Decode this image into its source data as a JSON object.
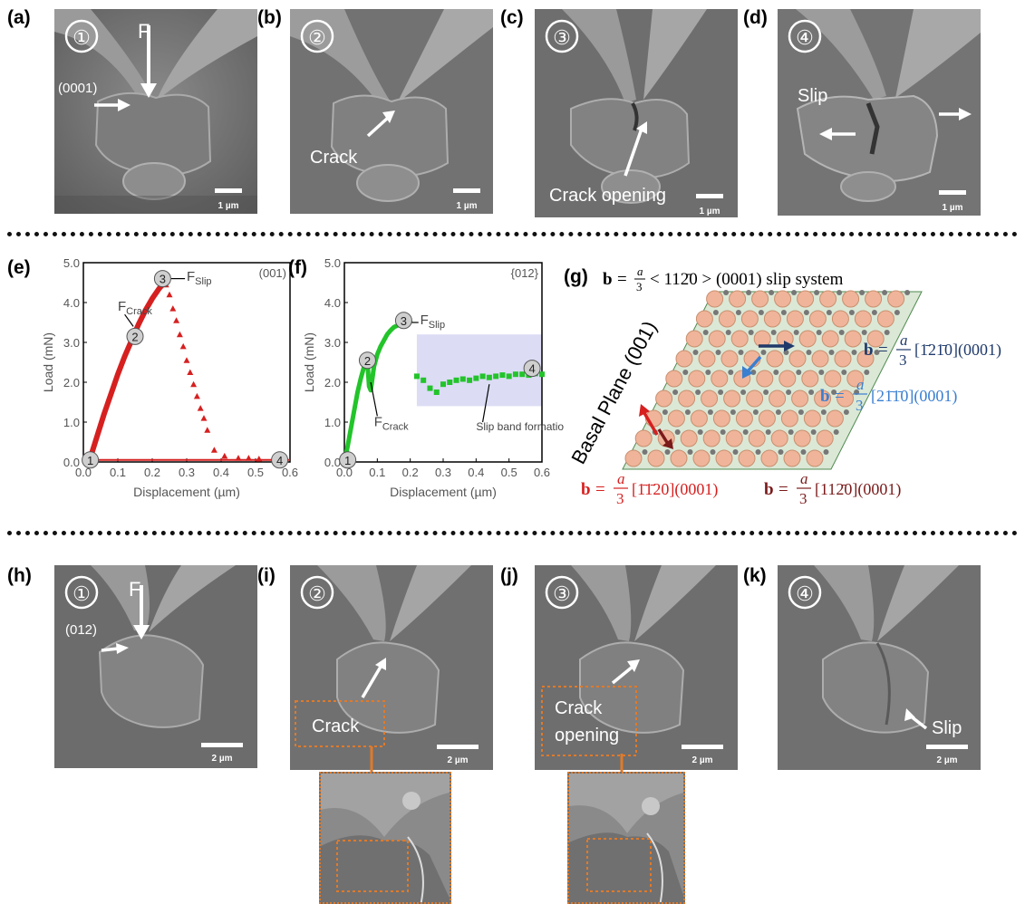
{
  "colors": {
    "crack_red": "#d62020",
    "slip_green": "#22c42a",
    "dark_red": "#7a1a1a",
    "navy": "#1f3a6a",
    "sky_blue": "#3a7fd0",
    "box_orange": "#e07a2a",
    "atom_pink": "#f0b49a",
    "lattice_green": "#4f8a4f"
  },
  "icons": [
    "down-arrow-icon",
    "right-arrow-icon",
    "left-arrow-icon",
    "double-headed-arrow-icon"
  ],
  "top_row": {
    "panels": [
      {
        "label": "(a)",
        "step": "①",
        "scale": "1 µm",
        "force": "F",
        "plane": "(0001)"
      },
      {
        "label": "(b)",
        "step": "②",
        "scale": "1 µm",
        "annotation": "Crack"
      },
      {
        "label": "(c)",
        "step": "③",
        "scale": "1 µm",
        "annotation": "Crack opening"
      },
      {
        "label": "(d)",
        "step": "④",
        "scale": "1 µm",
        "annotation": "Slip"
      }
    ]
  },
  "middle_row": {
    "chart_e_label": "(e)",
    "chart_f_label": "(f)",
    "panel_g_label": "(g)",
    "g_title": {
      "prefix": "b =",
      "frac_num": "a",
      "frac_den": "3",
      "suffix": " < 11Ā0 > (0001) slip system",
      "display": "< 11̅0 > (0001) slip system"
    },
    "g_basal_plane": "Basal Plane (001)",
    "g_vectors": [
      {
        "text": "[̅1̅2̅1̅0](0001)",
        "color": "#1f3a6a"
      },
      {
        "text": "[2̅1̅1̅0](0001)",
        "color": "#3a7fd0"
      },
      {
        "text": "[̅1̅1̅2̅0](0001)",
        "color": "#d62020"
      },
      {
        "text": "[11̅2̅0](0001)",
        "color": "#7a1a1a"
      }
    ],
    "g_vector_display": [
      "[1̄2̄1̄0](0001)",
      "[21̄1̄0](0001)",
      "[1̄1̄20](0001)",
      "[112̄0](0001)"
    ],
    "g_vector_labels": {
      "navy": "[ī2ī0](0001)",
      "blue": "[2īī0](0001)",
      "red": "[īī20](0001)",
      "darkred": "[11Ġ0](0001)"
    },
    "g_b": "b",
    "g_a": "a",
    "g_3": "3"
  },
  "vec_text": {
    "navy": "[1̄21̄0](0001)",
    "blue": "[21̄1̄0](0001)",
    "red": "[1̄1̄20](0001)",
    "darkred": "[112̄0](0001)",
    "title_suffix": "< 112̄0 > (0001) slip system"
  },
  "bottom_row": {
    "panels": [
      {
        "label": "(h)",
        "step": "①",
        "scale": "2 µm",
        "force": "F",
        "plane": "(012)"
      },
      {
        "label": "(i)",
        "step": "②",
        "scale": "2 µm",
        "annotation": "Crack"
      },
      {
        "label": "(j)",
        "step": "③",
        "scale": "2 µm",
        "annotation_line1": "Crack",
        "annotation_line2": "opening"
      },
      {
        "label": "(k)",
        "step": "④",
        "scale": "2 µm",
        "annotation": "Slip"
      }
    ]
  },
  "chart_data": [
    {
      "type": "scatter",
      "panel": "(e)",
      "orientation": "(001)",
      "xlabel": "Displacement (µm)",
      "ylabel": "Load (mN)",
      "xlim": [
        0.0,
        0.6
      ],
      "ylim": [
        0.0,
        5.0
      ],
      "xticks": [
        "0.0",
        "0.1",
        "0.2",
        "0.3",
        "0.4",
        "0.5",
        "0.6"
      ],
      "yticks": [
        "0.0",
        "1.0",
        "2.0",
        "3.0",
        "4.0",
        "5.0"
      ],
      "annotations": [
        {
          "text": "F",
          "sub": "Crack",
          "x": 0.1,
          "y": 3.8
        },
        {
          "text": "F",
          "sub": "Slip",
          "x": 0.3,
          "y": 4.55
        }
      ],
      "markers": [
        {
          "label": "1",
          "x": 0.02,
          "y": 0.05
        },
        {
          "label": "2",
          "x": 0.15,
          "y": 3.15
        },
        {
          "label": "3",
          "x": 0.23,
          "y": 4.6
        },
        {
          "label": "4",
          "x": 0.57,
          "y": 0.05
        }
      ],
      "series": [
        {
          "style": "dense-line",
          "x": [
            0.02,
            0.04,
            0.06,
            0.08,
            0.1,
            0.12,
            0.14,
            0.16,
            0.18,
            0.2,
            0.22,
            0.24
          ],
          "y": [
            0.1,
            0.65,
            1.2,
            1.7,
            2.2,
            2.65,
            3.05,
            3.45,
            3.8,
            4.1,
            4.35,
            4.55
          ]
        },
        {
          "style": "triangles",
          "x": [
            0.24,
            0.25,
            0.26,
            0.27,
            0.28,
            0.29,
            0.3,
            0.31,
            0.32,
            0.33,
            0.34,
            0.35,
            0.36,
            0.38,
            0.41,
            0.45,
            0.48,
            0.51
          ],
          "y": [
            4.45,
            4.2,
            3.85,
            3.55,
            3.2,
            2.9,
            2.55,
            2.25,
            1.95,
            1.65,
            1.35,
            1.1,
            0.8,
            0.3,
            0.15,
            0.1,
            0.1,
            0.08
          ]
        },
        {
          "style": "baseline",
          "x": [
            0.0,
            0.6
          ],
          "y": [
            0.05,
            0.05
          ]
        }
      ]
    },
    {
      "type": "scatter",
      "panel": "(f)",
      "orientation": "{012}",
      "xlabel": "Displacement (µm)",
      "ylabel": "Load (mN)",
      "xlim": [
        0.0,
        0.6
      ],
      "ylim": [
        0.0,
        5.0
      ],
      "xticks": [
        "0.0",
        "0.1",
        "0.2",
        "0.3",
        "0.4",
        "0.5",
        "0.6"
      ],
      "yticks": [
        "0.0",
        "1.0",
        "2.0",
        "3.0",
        "4.0",
        "5.0"
      ],
      "annotations": [
        {
          "text": "F",
          "sub": "Slip",
          "x": 0.23,
          "y": 3.45
        },
        {
          "text": "F",
          "sub": "Crack",
          "x": 0.09,
          "y": 0.9
        },
        {
          "text": "Slip band formation",
          "x": 0.4,
          "y": 0.8
        }
      ],
      "markers": [
        {
          "label": "1",
          "x": 0.01,
          "y": 0.05
        },
        {
          "label": "2",
          "x": 0.07,
          "y": 2.55
        },
        {
          "label": "3",
          "x": 0.18,
          "y": 3.55
        },
        {
          "label": "4",
          "x": 0.57,
          "y": 2.35
        }
      ],
      "highlight_region": {
        "x": [
          0.22,
          0.6
        ],
        "y": [
          1.4,
          3.2
        ]
      },
      "series": [
        {
          "style": "dense-line",
          "x": [
            0.0,
            0.01,
            0.02,
            0.03,
            0.04,
            0.05,
            0.06,
            0.07,
            0.075,
            0.08,
            0.085,
            0.09,
            0.1,
            0.11,
            0.12,
            0.13,
            0.14,
            0.15,
            0.16,
            0.17,
            0.18,
            0.19,
            0.2
          ],
          "y": [
            0.0,
            0.4,
            0.85,
            1.3,
            1.75,
            2.1,
            2.4,
            2.5,
            1.9,
            1.8,
            2.1,
            2.4,
            2.7,
            2.9,
            3.05,
            3.2,
            3.3,
            3.38,
            3.42,
            3.45,
            3.48,
            3.5,
            3.52
          ]
        },
        {
          "style": "squares",
          "x": [
            0.22,
            0.24,
            0.26,
            0.28,
            0.3,
            0.32,
            0.34,
            0.36,
            0.38,
            0.4,
            0.42,
            0.44,
            0.46,
            0.48,
            0.5,
            0.52,
            0.54,
            0.56,
            0.58,
            0.6
          ],
          "y": [
            2.15,
            2.05,
            1.85,
            1.75,
            1.95,
            2.0,
            2.05,
            2.08,
            2.05,
            2.1,
            2.15,
            2.12,
            2.15,
            2.18,
            2.15,
            2.2,
            2.2,
            2.18,
            2.22,
            2.2
          ]
        }
      ]
    }
  ]
}
